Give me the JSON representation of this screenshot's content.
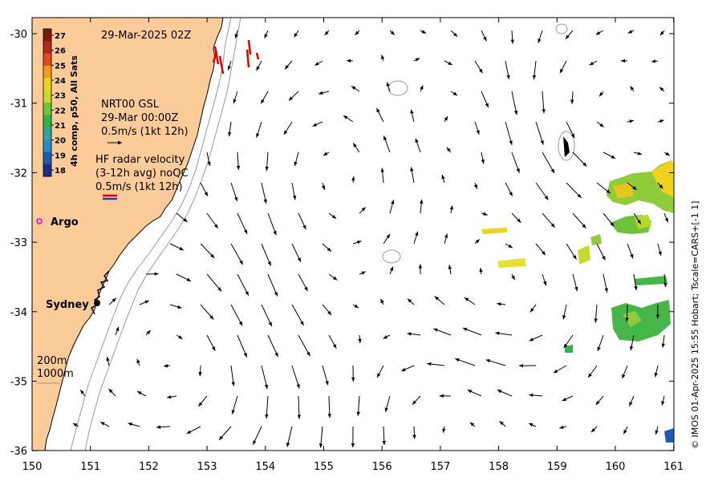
{
  "title": "29-Mar-2025 02Z",
  "colorbar": {
    "label": "4h comp, p50, All Sats",
    "ticks": [
      "27",
      "26",
      "25",
      "24",
      "23",
      "22",
      "21",
      "20",
      "19",
      "18"
    ],
    "colors": [
      "#7a1a12",
      "#b3291c",
      "#e24a1f",
      "#f39a1f",
      "#f0d21d",
      "#c7d92a",
      "#72c43a",
      "#33b14a",
      "#2aa79a",
      "#2a8ad0",
      "#1f5ab8",
      "#1a2f8c"
    ]
  },
  "legend": {
    "gsl": {
      "line1": "NRT00 GSL",
      "line2": "29-Mar 00:00Z",
      "line3": "0.5m/s (1kt 12h)"
    },
    "hf": {
      "line1": "HF radar velocity",
      "line2": "(3-12h avg) noQC",
      "line3": "0.5m/s (1kt 12h)"
    }
  },
  "places": {
    "argo": "Argo",
    "sydney": "Sydney"
  },
  "depth_legend": {
    "d200": "200m",
    "d1000": "1000m"
  },
  "x_ticks": [
    "150",
    "151",
    "152",
    "153",
    "154",
    "155",
    "156",
    "157",
    "158",
    "159",
    "160",
    "161"
  ],
  "y_ticks": [
    "-30",
    "-31",
    "-32",
    "-33",
    "-34",
    "-35",
    "-36"
  ],
  "credit": "© IMOS 01-Apr-2025 15:55 Hobart; Tscale=CARS+[-1 1]",
  "colors": {
    "land": "#fccb9a",
    "ocean": "#ffffff",
    "coast": "#000000",
    "isobath": "#999999",
    "argo": "#e000e0"
  }
}
